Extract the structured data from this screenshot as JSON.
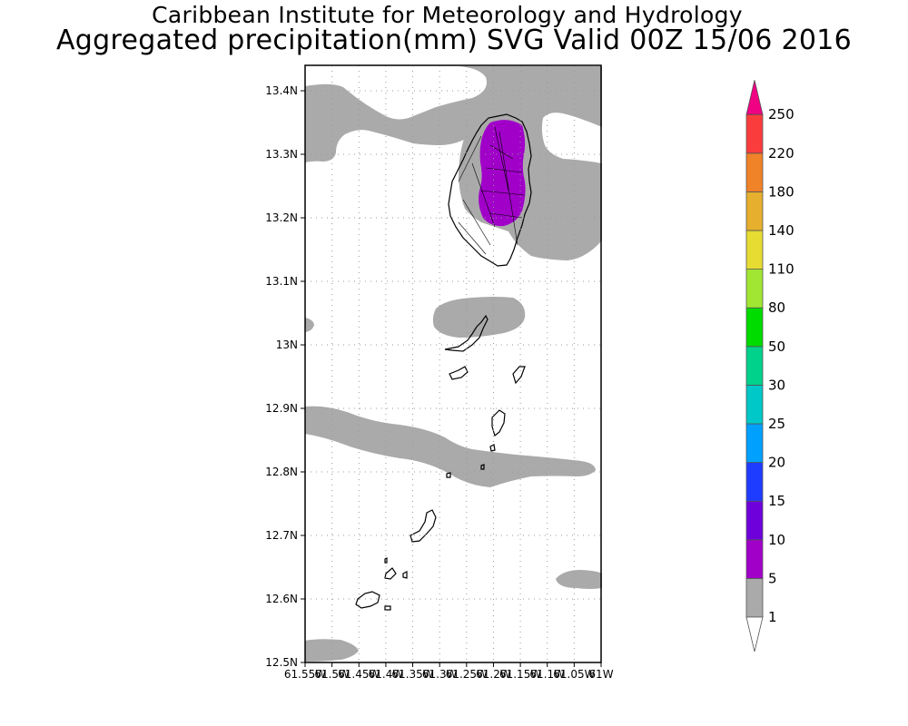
{
  "title": {
    "line1": "Caribbean Institute for Meteorology and Hydrology",
    "line2": "Aggregated precipitation(mm) SVG Valid 00Z 15/06 2016"
  },
  "map": {
    "lat_labels": [
      "13.4N",
      "13.3N",
      "13.2N",
      "13.1N",
      "13N",
      "12.9N",
      "12.8N",
      "12.7N",
      "12.6N",
      "12.5N"
    ],
    "lon_labels": [
      "61.55W",
      "61.5W",
      "61.45W",
      "61.4W",
      "61.35W",
      "61.3W",
      "61.25W",
      "61.2W",
      "61.15W",
      "61.1W",
      "61.05W",
      "61W"
    ],
    "lat_range": [
      12.5,
      13.44
    ],
    "lon_range": [
      -61.55,
      -61.0
    ]
  },
  "colorbar": {
    "levels": [
      "1",
      "5",
      "10",
      "15",
      "20",
      "25",
      "30",
      "50",
      "80",
      "110",
      "140",
      "180",
      "220",
      "250"
    ],
    "colors": [
      "#aaaaaa",
      "#a000c8",
      "#6e00dc",
      "#1e3cff",
      "#00a0ff",
      "#00c8c8",
      "#00d28c",
      "#00dc00",
      "#a0e632",
      "#e6dc32",
      "#e6af2d",
      "#f08228",
      "#fa3c3c",
      "#f00082"
    ]
  },
  "colors": {
    "precip_light": "#aaaaaa",
    "precip_5_10": "#a000c8"
  }
}
